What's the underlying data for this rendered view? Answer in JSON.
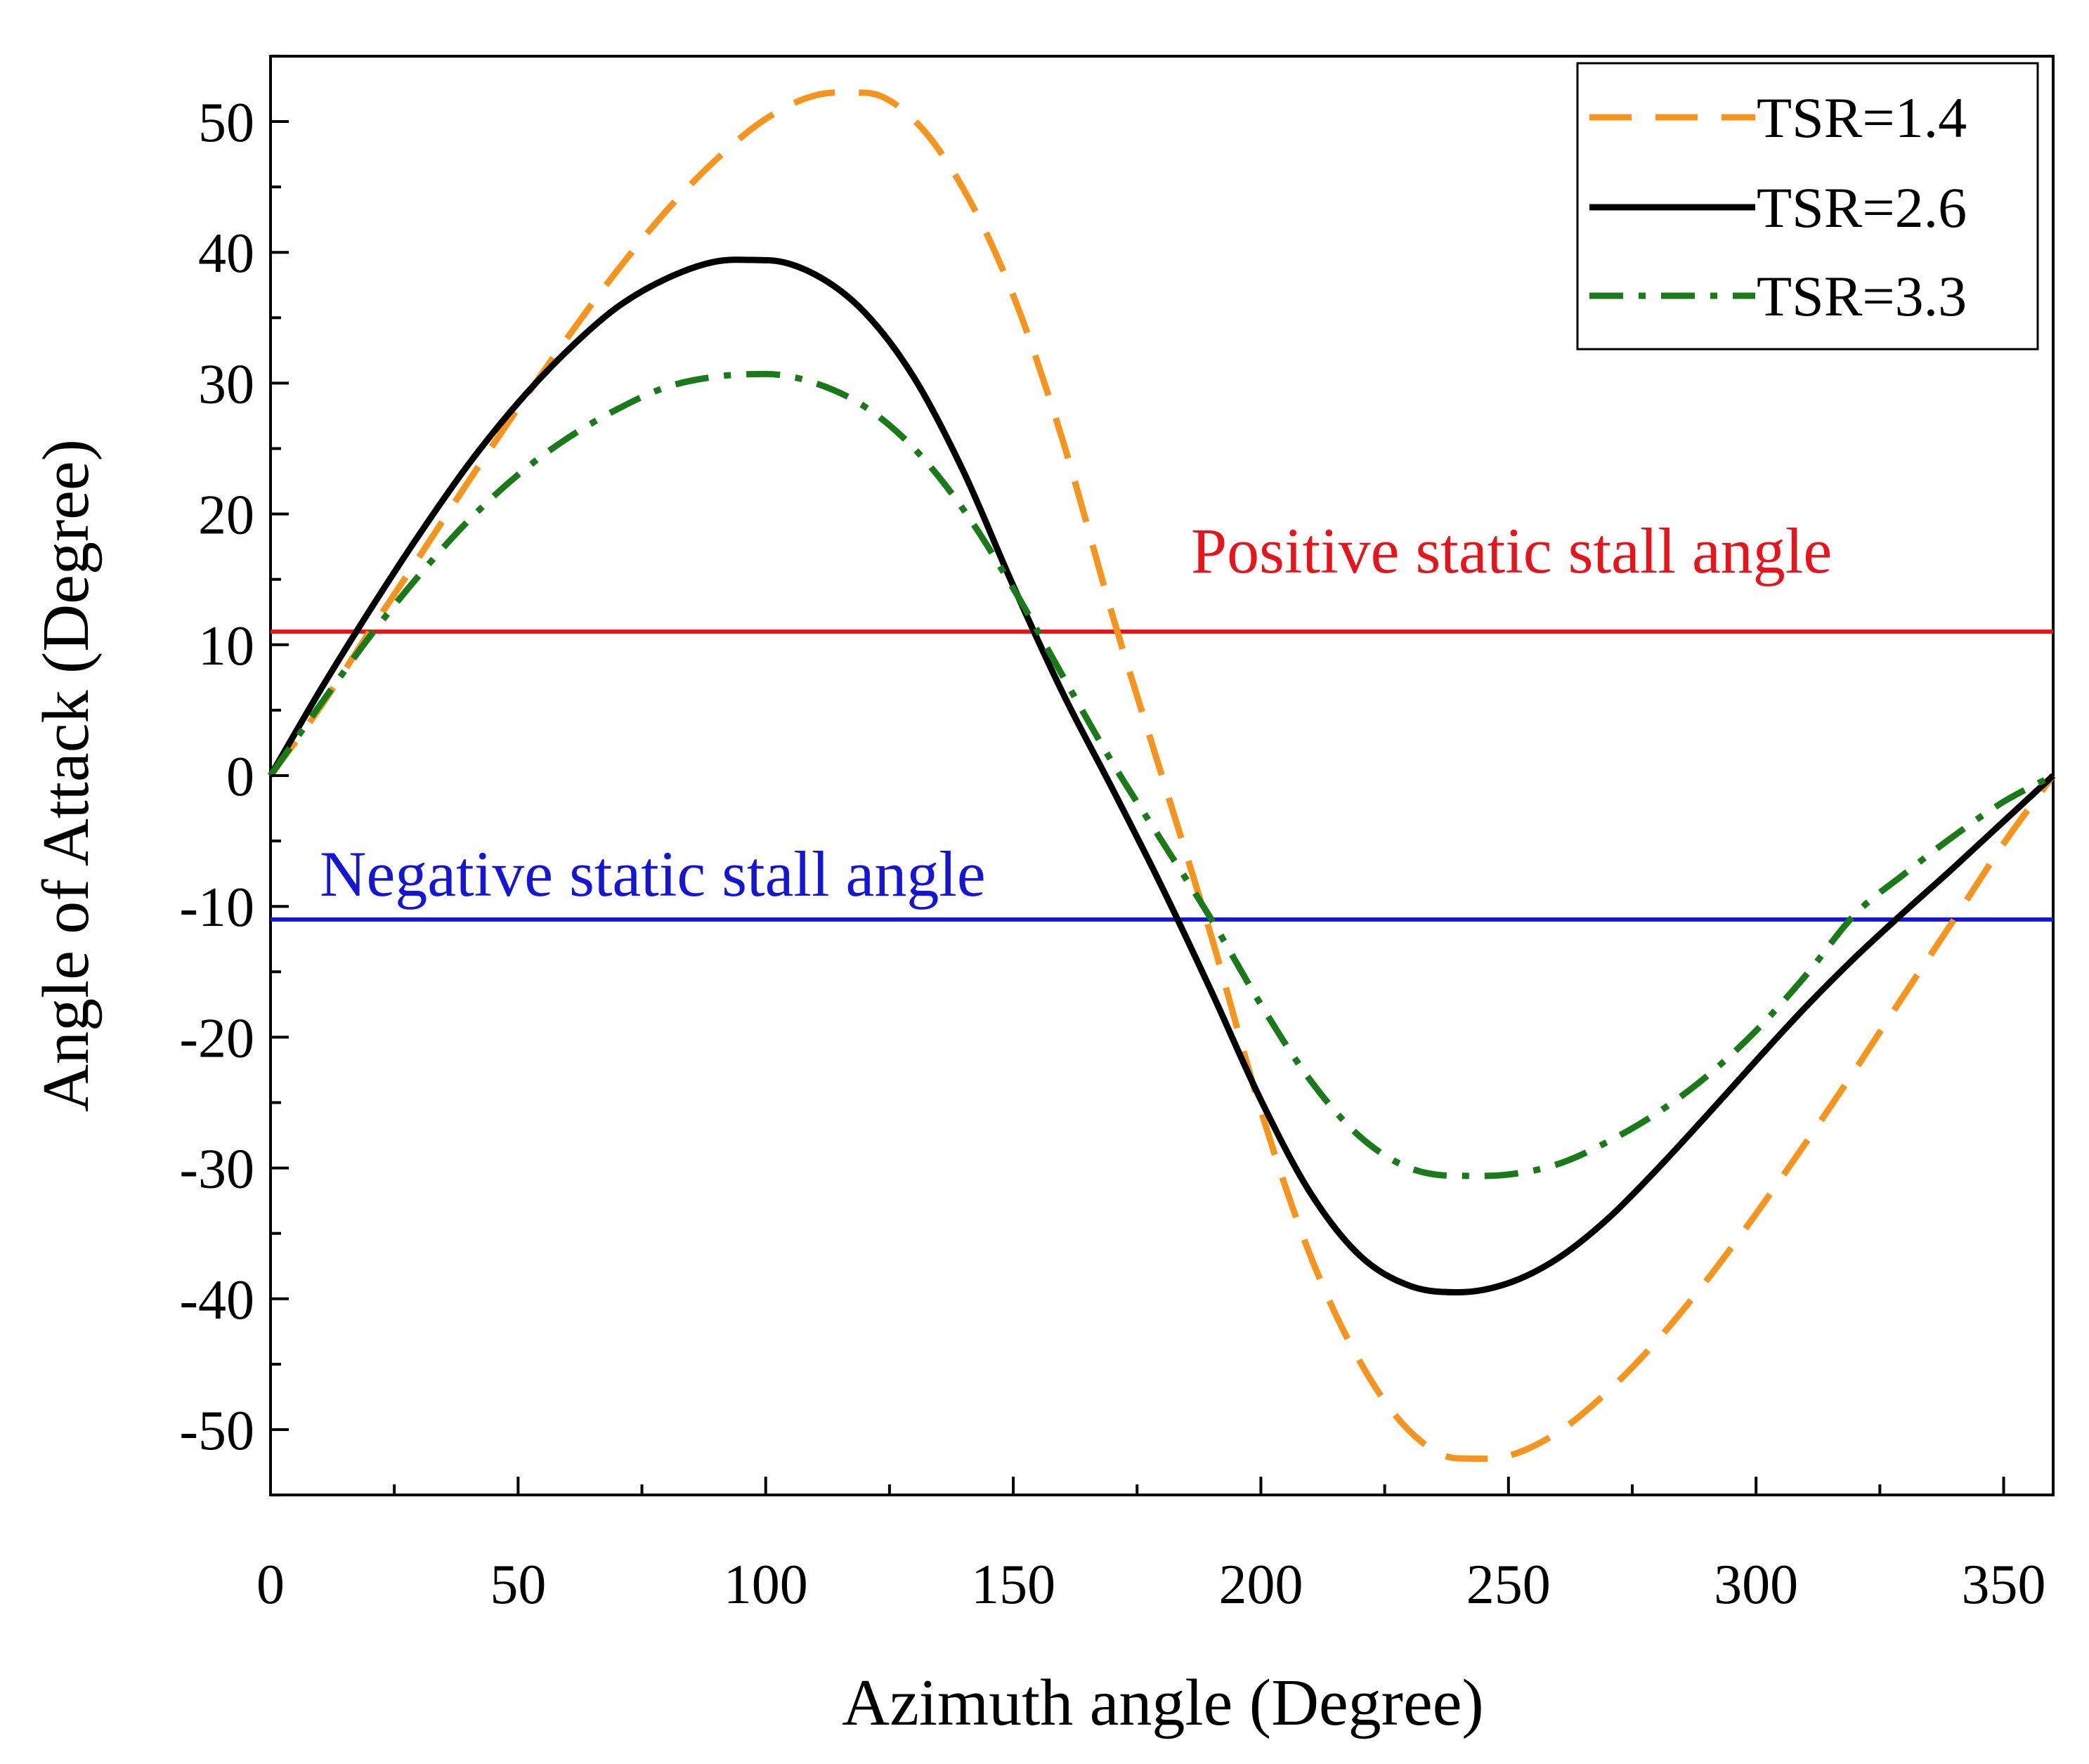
{
  "chart_data": {
    "type": "line",
    "title": "",
    "xlabel": "Azimuth angle (Degree)",
    "ylabel": "Angle of Attack (Degree)",
    "xlim": [
      0,
      360
    ],
    "ylim": [
      -55,
      55
    ],
    "xticks": [
      0,
      50,
      100,
      150,
      200,
      250,
      300,
      350
    ],
    "xtick_labels": [
      "0",
      "50",
      "100",
      "150",
      "200",
      "250",
      "300",
      "350"
    ],
    "yticks": [
      -50,
      -40,
      -30,
      -20,
      -10,
      0,
      10,
      20,
      30,
      40,
      50
    ],
    "ytick_labels": [
      "-50",
      "-40",
      "-30",
      "-20",
      "-10",
      "0",
      "10",
      "20",
      "30",
      "40",
      "50"
    ],
    "grid": false,
    "legend_position": "top-right",
    "series": [
      {
        "name": "TSR=1.4",
        "tsr": 1.4,
        "color": "#F7941D",
        "style": "dashed",
        "x": [
          0,
          10,
          20,
          30,
          40,
          50,
          60,
          70,
          80,
          90,
          100,
          110,
          120,
          130,
          140,
          150,
          160,
          170,
          180,
          190,
          200,
          210,
          220,
          230,
          240,
          250,
          260,
          270,
          280,
          290,
          300,
          310,
          320,
          330,
          340,
          350,
          360
        ],
        "values": [
          0,
          5.2,
          11.0,
          16.7,
          22.5,
          28.1,
          33.5,
          38.6,
          43.2,
          47.1,
          50.2,
          52.0,
          52.2,
          50.1,
          44.8,
          36.7,
          25.6,
          12.3,
          0,
          -12.3,
          -25.6,
          -36.7,
          -44.8,
          -50.1,
          -52.2,
          -52.0,
          -50.2,
          -47.1,
          -43.2,
          -38.6,
          -33.5,
          -28.1,
          -22.5,
          -16.7,
          -11.0,
          -5.2,
          0
        ]
      },
      {
        "name": "TSR=2.6",
        "tsr": 2.6,
        "color": "#000000",
        "style": "solid",
        "x": [
          0,
          10,
          20,
          30,
          40,
          50,
          60,
          70,
          80,
          90,
          100,
          110,
          120,
          130,
          140,
          150,
          160,
          170,
          180,
          190,
          200,
          210,
          220,
          230,
          240,
          250,
          260,
          270,
          280,
          290,
          300,
          310,
          320,
          330,
          340,
          350,
          360
        ],
        "values": [
          0,
          6.5,
          12.6,
          18.4,
          23.8,
          28.5,
          32.5,
          35.8,
          38.0,
          39.3,
          39.4,
          38.3,
          35.4,
          30.4,
          23.2,
          14.5,
          6.3,
          -1.0,
          -8.5,
          -16.5,
          -24.8,
          -31.9,
          -36.7,
          -39.0,
          -39.5,
          -38.8,
          -36.9,
          -33.9,
          -30.1,
          -26.0,
          -21.8,
          -17.7,
          -13.9,
          -10.4,
          -7.0,
          -3.5,
          0
        ]
      },
      {
        "name": "TSR=3.3",
        "tsr": 3.3,
        "color": "#1A7A1A",
        "style": "dashdot",
        "x": [
          0,
          10,
          20,
          30,
          40,
          50,
          60,
          70,
          80,
          90,
          100,
          110,
          120,
          130,
          140,
          150,
          160,
          170,
          180,
          190,
          200,
          210,
          220,
          230,
          240,
          250,
          260,
          270,
          280,
          290,
          300,
          310,
          320,
          330,
          340,
          350,
          360
        ],
        "values": [
          0,
          5.4,
          10.6,
          15.3,
          19.5,
          23.0,
          25.8,
          28.0,
          29.7,
          30.5,
          30.7,
          30.0,
          28.2,
          25.0,
          20.3,
          14.3,
          7.6,
          1.0,
          -5.0,
          -11.0,
          -17.5,
          -23.3,
          -27.6,
          -30.0,
          -30.6,
          -30.5,
          -29.7,
          -28.0,
          -25.8,
          -23.0,
          -19.5,
          -15.3,
          -10.6,
          -7.5,
          -4.6,
          -2.0,
          0
        ]
      }
    ],
    "reference_lines": [
      {
        "y": 11,
        "color": "#E8141C",
        "label": "Positive static stall angle"
      },
      {
        "y": -11,
        "color": "#1515D6",
        "label": "Negative static stall angle"
      }
    ]
  }
}
